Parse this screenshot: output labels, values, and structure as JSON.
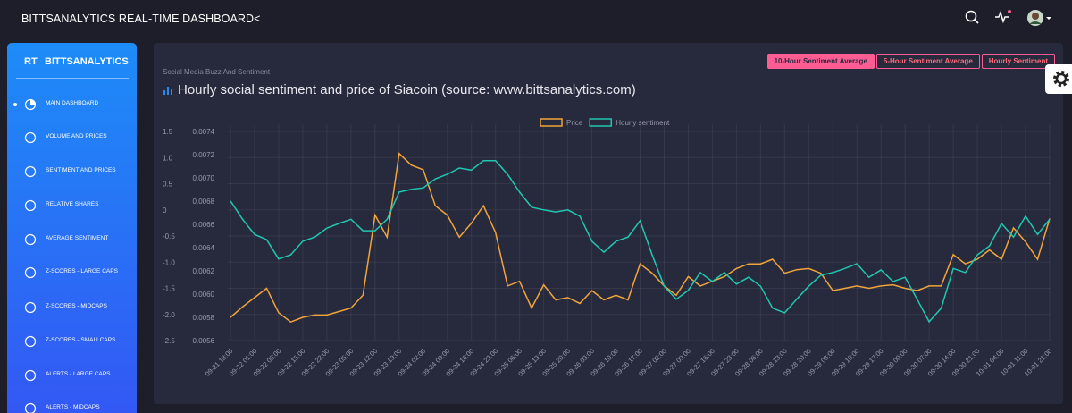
{
  "header": {
    "title": "BITTSANALYTICS REAL-TIME DASHBOARD<"
  },
  "sidebar": {
    "logo_short": "RT",
    "logo": "BITTSANALYTICS",
    "items": [
      "MAIN DASHBOARD",
      "VOLUME AND PRICES",
      "SENTIMENT AND PRICES",
      "RELATIVE SHARES",
      "AVERAGE SENTIMENT",
      "Z-SCORES - LARGE CAPS",
      "Z-SCORES - MIDCAPS",
      "Z-SCORES - SMALLCAPS",
      "ALERTS - LARGE CAPS",
      "ALERTS - MIDCAPS"
    ]
  },
  "panel": {
    "category": "Social Media Buzz And Sentiment",
    "tabs": [
      "10-Hour Sentiment Average",
      "5-Hour Sentiment Average",
      "Hourly Sentiment"
    ]
  },
  "chart_data": {
    "type": "line",
    "title": "Hourly social sentiment and price of Siacoin (source: www.bittsanalytics.com)",
    "categories": [
      "09-21 18:00",
      null,
      "09-22 01:00",
      null,
      "09-22 08:00",
      null,
      "09-22 15:00",
      null,
      "09-22 22:00",
      null,
      "09-23 05:00",
      null,
      "09-23 12:00",
      null,
      "09-23 19:00",
      null,
      "09-24 02:00",
      null,
      "09-24 09:00",
      null,
      "09-24 16:00",
      null,
      "09-24 23:00",
      null,
      "09-25 06:00",
      null,
      "09-25 13:00",
      null,
      "09-25 20:00",
      null,
      "09-26 03:00",
      null,
      "09-26 10:00",
      null,
      "09-26 17:00",
      null,
      "09-27 02:00",
      null,
      "09-27 09:00",
      null,
      "09-27 16:00",
      null,
      "09-27 23:00",
      null,
      "09-28 06:00",
      null,
      "09-28 13:00",
      null,
      "09-28 20:00",
      null,
      "09-29 03:00",
      null,
      "09-29 10:00",
      null,
      "09-29 17:00",
      null,
      "09-30 00:00",
      null,
      "09-30 07:00",
      null,
      "09-30 14:00",
      null,
      "09-30 21:00",
      null,
      "10-01 04:00",
      null,
      "10-01 11:00",
      null,
      "10-01 21:00"
    ],
    "series": [
      {
        "name": "Price",
        "color": "#f0a53a",
        "axis": "y2",
        "values": [
          0.0058,
          0.00589,
          0.00597,
          0.00605,
          0.00584,
          0.00576,
          0.0058,
          0.00582,
          0.00582,
          0.00585,
          0.00588,
          0.00599,
          0.00668,
          0.00649,
          0.00721,
          0.00711,
          0.00707,
          0.00676,
          0.00668,
          0.00649,
          0.00661,
          0.00676,
          0.00653,
          0.00607,
          0.00611,
          0.00588,
          0.00608,
          0.00595,
          0.00597,
          0.00592,
          0.00603,
          0.00595,
          0.00599,
          0.00595,
          0.00626,
          0.00618,
          0.00607,
          0.00599,
          0.00615,
          0.00607,
          0.00611,
          0.00615,
          0.00622,
          0.00626,
          0.00626,
          0.0063,
          0.00618,
          0.00621,
          0.00622,
          0.00618,
          0.00603,
          0.00605,
          0.00607,
          0.00605,
          0.00607,
          0.00608,
          0.00605,
          0.00603,
          0.00607,
          0.00607,
          0.00634,
          0.00626,
          0.0063,
          0.00638,
          0.0063,
          0.00657,
          0.00645,
          0.0063,
          0.00665
        ]
      },
      {
        "name": "Hourly sentiment",
        "color": "#1fc8b0",
        "values": [
          0.17,
          -0.18,
          -0.47,
          -0.57,
          -0.94,
          -0.86,
          -0.6,
          -0.52,
          -0.35,
          -0.26,
          -0.18,
          -0.4,
          -0.4,
          -0.18,
          0.34,
          0.39,
          0.42,
          0.59,
          0.68,
          0.8,
          0.76,
          0.94,
          0.94,
          0.68,
          0.34,
          0.05,
          0,
          -0.04,
          0,
          -0.12,
          -0.6,
          -0.81,
          -0.6,
          -0.52,
          -0.21,
          -0.86,
          -1.46,
          -1.71,
          -1.54,
          -1.2,
          -1.37,
          -1.2,
          -1.42,
          -1.29,
          -1.46,
          -1.88,
          -1.97,
          -1.71,
          -1.46,
          -1.25,
          -1.2,
          -1.12,
          -1.03,
          -1.29,
          -1.15,
          -1.37,
          -1.29,
          -1.71,
          -2.14,
          -1.88,
          -1.12,
          -1.2,
          -0.86,
          -0.69,
          -0.26,
          -0.52,
          -0.12,
          -0.47,
          -0.18
        ]
      }
    ],
    "ylim": [
      -2.5,
      1.5
    ],
    "yticks": [
      -2.5,
      {
        "value": -2,
        "label": "-2.0"
      },
      -1.5,
      {
        "value": -1,
        "label": "-1.0"
      },
      -0.5,
      0,
      0.5,
      {
        "value": 1,
        "label": "1.0"
      },
      1.5
    ],
    "y2lim": [
      0.0056,
      0.0074
    ],
    "y2ticks": [
      0.0056,
      0.0058,
      {
        "value": 0.006,
        "label": "0.0060"
      },
      0.0062,
      0.0064,
      0.0066,
      0.0068,
      {
        "value": 0.007,
        "label": "0.0070"
      },
      0.0072,
      0.0074
    ],
    "grid": true,
    "legend": "top"
  }
}
